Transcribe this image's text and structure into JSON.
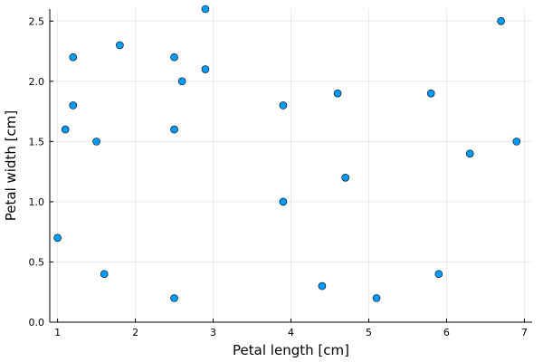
{
  "chart_data": {
    "type": "scatter",
    "xlabel": "Petal length [cm]",
    "ylabel": "Petal width [cm]",
    "xlim": [
      0.9,
      7.1
    ],
    "ylim": [
      0.0,
      2.6
    ],
    "x_ticks": [
      1,
      2,
      3,
      4,
      5,
      6,
      7
    ],
    "x_tick_labels": [
      "1",
      "2",
      "3",
      "4",
      "5",
      "6",
      "7"
    ],
    "y_ticks": [
      0.0,
      0.5,
      1.0,
      1.5,
      2.0,
      2.5
    ],
    "y_tick_labels": [
      "0.0",
      "0.5",
      "1.0",
      "1.5",
      "2.0",
      "2.5"
    ],
    "grid": true,
    "legend": "none",
    "marker_color": "#009AFA",
    "series": [
      {
        "x": [
          1.0,
          1.1,
          1.2,
          1.2,
          1.5,
          1.6,
          1.8,
          2.5,
          2.5,
          2.5,
          2.6,
          2.9,
          2.9,
          3.9,
          3.9,
          4.4,
          4.6,
          4.7,
          5.1,
          5.8,
          5.9,
          6.3,
          6.7,
          6.9
        ],
        "y": [
          0.7,
          1.6,
          2.2,
          1.8,
          1.5,
          0.4,
          2.3,
          2.2,
          1.6,
          0.2,
          2.0,
          2.6,
          2.1,
          1.8,
          1.0,
          0.3,
          1.9,
          1.2,
          0.2,
          1.9,
          0.4,
          1.4,
          2.5,
          1.5
        ]
      }
    ]
  }
}
